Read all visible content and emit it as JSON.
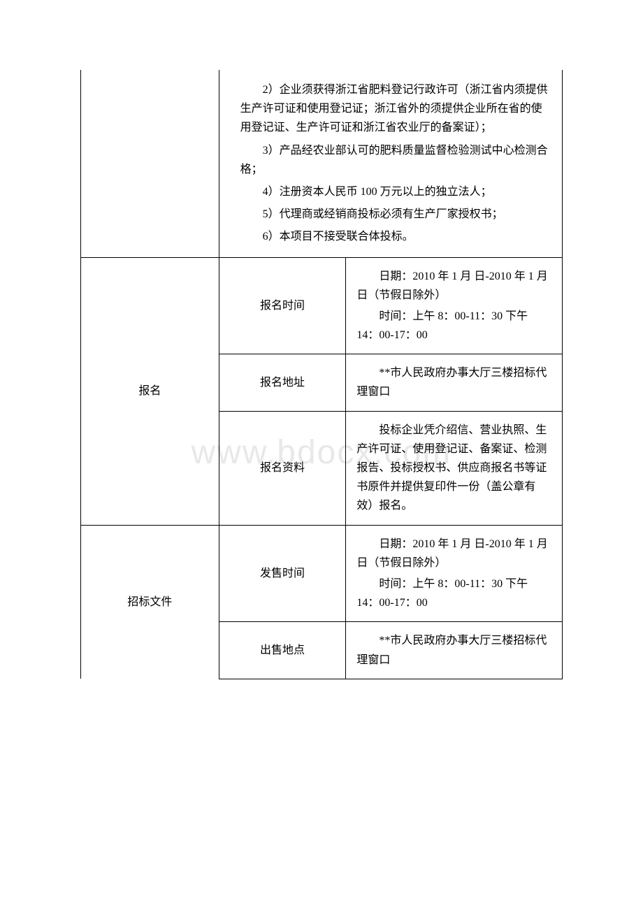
{
  "watermark": "www.bdocx.com",
  "requirements": {
    "item2": "2）企业须获得浙江省肥料登记行政许可（浙江省内须提供生产许可证和使用登记证；浙江省外的须提供企业所在省的使用登记证、生产许可证和浙江省农业厅的备案证）；",
    "item3": "3）产品经农业部认可的肥料质量监督检验测试中心检测合格；",
    "item4": "4）注册资本人民币 100 万元以上的独立法人；",
    "item5": "5）代理商或经销商投标必须有生产厂家授权书；",
    "item6": "6）本项目不接受联合体投标。"
  },
  "registration": {
    "label": "报名",
    "time_label": "报名时间",
    "time_date": "日期：2010 年 1 月 日-2010 年 1 月 日（节假日除外）",
    "time_hours": "时间：上午 8：00-11：30 下午 14：00-17：00",
    "address_label": "报名地址",
    "address_value": "**市人民政府办事大厅三楼招标代理窗口",
    "materials_label": "报名资料",
    "materials_value": "投标企业凭介绍信、营业执照、生产许可证、使用登记证、备案证、检测报告、投标授权书、供应商报名书等证书原件并提供复印件一份（盖公章有效）报名。"
  },
  "tender_doc": {
    "label": "招标文件",
    "sale_time_label": "发售时间",
    "sale_time_date": "日期：2010 年 1 月 日-2010 年 1 月 日（节假日除外）",
    "sale_time_hours": "时间：上午 8：00-11：30 下午 14：00-17：00",
    "sale_location_label": "出售地点",
    "sale_location_value": "**市人民政府办事大厅三楼招标代理窗口"
  }
}
